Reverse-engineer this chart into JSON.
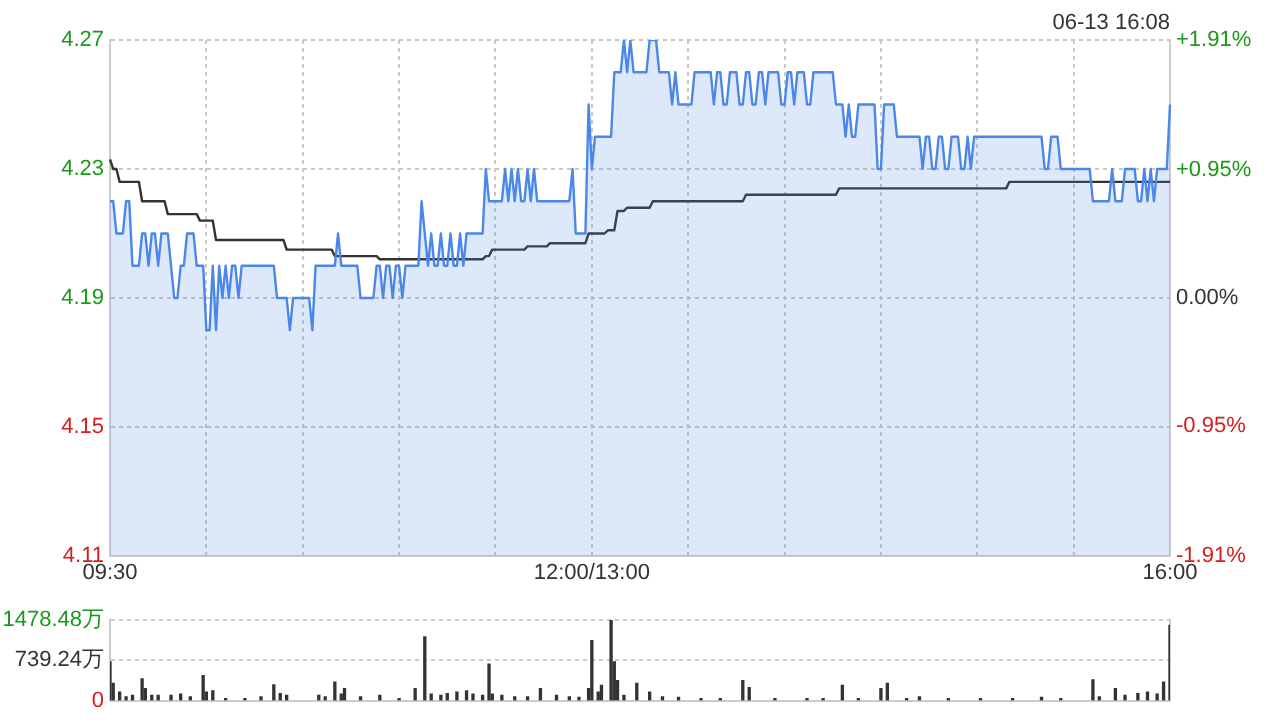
{
  "chart_data": [
    {
      "type": "line",
      "annotations": [
        "06-13 16:08"
      ],
      "categories": [
        "09:30",
        null,
        null,
        null,
        null,
        null,
        null,
        null,
        null,
        null,
        null,
        null,
        null,
        null,
        null,
        null,
        null,
        null,
        null,
        null,
        null,
        null,
        null,
        null,
        null,
        null,
        null,
        null,
        null,
        null,
        null,
        null,
        null,
        null,
        null,
        null,
        null,
        null,
        null,
        null,
        null,
        null,
        null,
        null,
        null,
        null,
        null,
        null,
        null,
        null,
        null,
        null,
        null,
        null,
        null,
        null,
        null,
        null,
        null,
        null,
        null,
        null,
        null,
        null,
        null,
        null,
        null,
        null,
        null,
        null,
        null,
        null,
        null,
        null,
        null,
        null,
        null,
        null,
        null,
        null,
        null,
        null,
        null,
        null,
        null,
        null,
        null,
        null,
        null,
        null,
        null,
        null,
        null,
        null,
        null,
        null,
        null,
        null,
        null,
        null,
        null,
        null,
        null,
        null,
        null,
        null,
        null,
        null,
        null,
        null,
        null,
        null,
        null,
        null,
        null,
        null,
        null,
        null,
        null,
        null,
        null,
        null,
        null,
        null,
        null,
        null,
        null,
        null,
        null,
        null,
        null,
        null,
        null,
        null,
        null,
        null,
        null,
        null,
        null,
        null,
        null,
        null,
        null,
        null,
        null,
        null,
        null,
        null,
        null,
        null,
        "12:00/13:00",
        null,
        null,
        null,
        null,
        null,
        null,
        null,
        null,
        null,
        null,
        null,
        null,
        null,
        null,
        null,
        null,
        null,
        null,
        null,
        null,
        null,
        null,
        null,
        null,
        null,
        null,
        null,
        null,
        null,
        null,
        null,
        null,
        null,
        null,
        null,
        null,
        null,
        null,
        null,
        null,
        null,
        null,
        null,
        null,
        null,
        null,
        null,
        null,
        null,
        null,
        null,
        null,
        null,
        null,
        null,
        null,
        null,
        null,
        null,
        null,
        null,
        null,
        null,
        null,
        null,
        null,
        null,
        null,
        null,
        null,
        null,
        null,
        null,
        null,
        null,
        null,
        null,
        null,
        null,
        null,
        null,
        null,
        null,
        null,
        null,
        null,
        null,
        null,
        null,
        null,
        null,
        null,
        null,
        null,
        null,
        null,
        null,
        null,
        null,
        null,
        null,
        null,
        null,
        null,
        null,
        null,
        null,
        null,
        null,
        null,
        null,
        null,
        null,
        null,
        null,
        null,
        null,
        null,
        null,
        null,
        null,
        null,
        null,
        null,
        null,
        null,
        null,
        null,
        null,
        null,
        null,
        null,
        null,
        null,
        null,
        null,
        null,
        null,
        null,
        null,
        null,
        null,
        null,
        null,
        null,
        null,
        null,
        null,
        null,
        null,
        null,
        null,
        null,
        null,
        null,
        null,
        null,
        null,
        null,
        null,
        null,
        null,
        null,
        null,
        null,
        null,
        null,
        null,
        null,
        null,
        null,
        null,
        null,
        null,
        null,
        null,
        null,
        null,
        null,
        "16:00"
      ],
      "ylim": [
        4.11,
        4.27
      ],
      "yticks": [
        4.11,
        4.15,
        4.19,
        4.23,
        4.27
      ],
      "y2lim": [
        -1.91,
        1.91
      ],
      "y2ticks": [
        {
          "value": -1.91,
          "label": "-1.91%"
        },
        {
          "value": -0.95,
          "label": "-0.95%"
        },
        {
          "value": 0,
          "label": "0.00%"
        },
        {
          "value": 0.95,
          "label": "+0.95%"
        },
        {
          "value": 1.91,
          "label": "+1.91%"
        }
      ],
      "grid": true,
      "marker": "none",
      "series": [
        {
          "type": "area",
          "color": "#4a87e8",
          "values": [
            4.22,
            4.22,
            4.21,
            4.21,
            4.21,
            4.22,
            4.22,
            4.2,
            4.2,
            4.2,
            4.21,
            4.21,
            4.2,
            4.21,
            4.21,
            4.2,
            4.21,
            4.21,
            4.21,
            4.2,
            4.19,
            4.19,
            4.2,
            4.2,
            4.21,
            4.21,
            4.21,
            4.2,
            4.2,
            4.2,
            4.18,
            4.18,
            4.2,
            4.18,
            4.2,
            4.19,
            4.2,
            4.19,
            4.2,
            4.2,
            4.19,
            4.2,
            4.2,
            4.2,
            4.2,
            4.2,
            4.2,
            4.2,
            4.2,
            4.2,
            4.2,
            4.2,
            4.19,
            4.19,
            4.19,
            4.19,
            4.18,
            4.19,
            4.19,
            4.19,
            4.19,
            4.19,
            4.19,
            4.18,
            4.2,
            4.2,
            4.2,
            4.2,
            4.2,
            4.2,
            4.2,
            4.21,
            4.2,
            4.2,
            4.2,
            4.2,
            4.2,
            4.2,
            4.19,
            4.19,
            4.19,
            4.19,
            4.19,
            4.2,
            4.2,
            4.19,
            4.2,
            4.2,
            4.19,
            4.2,
            4.2,
            4.19,
            4.2,
            4.2,
            4.2,
            4.2,
            4.2,
            4.22,
            4.21,
            4.2,
            4.21,
            4.2,
            4.2,
            4.21,
            4.2,
            4.2,
            4.21,
            4.2,
            4.2,
            4.21,
            4.2,
            4.21,
            4.21,
            4.21,
            4.21,
            4.21,
            4.21,
            4.23,
            4.22,
            4.22,
            4.22,
            4.22,
            4.22,
            4.23,
            4.22,
            4.23,
            4.22,
            4.23,
            4.22,
            4.22,
            4.23,
            4.22,
            4.23,
            4.22,
            4.22,
            4.22,
            4.22,
            4.22,
            4.22,
            4.22,
            4.22,
            4.22,
            4.22,
            4.22,
            4.23,
            4.21,
            4.21,
            4.21,
            4.21,
            4.25,
            4.23,
            4.24,
            4.24,
            4.24,
            4.24,
            4.24,
            4.24,
            4.26,
            4.26,
            4.26,
            4.27,
            4.26,
            4.27,
            4.26,
            4.26,
            4.26,
            4.26,
            4.26,
            4.27,
            4.27,
            4.27,
            4.26,
            4.26,
            4.26,
            4.26,
            4.25,
            4.26,
            4.25,
            4.25,
            4.25,
            4.25,
            4.25,
            4.26,
            4.26,
            4.26,
            4.26,
            4.26,
            4.26,
            4.25,
            4.26,
            4.26,
            4.25,
            4.25,
            4.26,
            4.26,
            4.26,
            4.25,
            4.25,
            4.26,
            4.26,
            4.25,
            4.25,
            4.26,
            4.26,
            4.25,
            4.26,
            4.26,
            4.26,
            4.26,
            4.25,
            4.25,
            4.26,
            4.26,
            4.25,
            4.26,
            4.26,
            4.26,
            4.25,
            4.25,
            4.26,
            4.26,
            4.26,
            4.26,
            4.26,
            4.26,
            4.26,
            4.25,
            4.25,
            4.25,
            4.24,
            4.25,
            4.24,
            4.24,
            4.25,
            4.25,
            4.25,
            4.25,
            4.25,
            4.25,
            4.23,
            4.23,
            4.25,
            4.25,
            4.25,
            4.25,
            4.24,
            4.24,
            4.24,
            4.24,
            4.24,
            4.24,
            4.24,
            4.24,
            4.23,
            4.24,
            4.24,
            4.23,
            4.23,
            4.24,
            4.24,
            4.23,
            4.23,
            4.24,
            4.24,
            4.24,
            4.23,
            4.23,
            4.24,
            4.23,
            4.24,
            4.24,
            4.24,
            4.24,
            4.24,
            4.24,
            4.24,
            4.24,
            4.24,
            4.24,
            4.24,
            4.24,
            4.24,
            4.24,
            4.24,
            4.24,
            4.24,
            4.24,
            4.24,
            4.24,
            4.24,
            4.24,
            4.23,
            4.23,
            4.24,
            4.24,
            4.24,
            4.23,
            4.23,
            4.23,
            4.23,
            4.23,
            4.23,
            4.23,
            4.23,
            4.23,
            4.23,
            4.22,
            4.22,
            4.22,
            4.22,
            4.22,
            4.22,
            4.23,
            4.22,
            4.22,
            4.22,
            4.23,
            4.23,
            4.23,
            4.23,
            4.22,
            4.22,
            4.23,
            4.22,
            4.23,
            4.22,
            4.23,
            4.23,
            4.23,
            4.23,
            4.25
          ]
        },
        {
          "type": "line",
          "color": "#333333",
          "values": [
            4.233,
            4.23,
            4.23,
            4.226,
            4.226,
            4.226,
            4.226,
            4.226,
            4.226,
            4.226,
            4.22,
            4.22,
            4.22,
            4.22,
            4.22,
            4.22,
            4.22,
            4.22,
            4.216,
            4.216,
            4.216,
            4.216,
            4.216,
            4.216,
            4.216,
            4.216,
            4.216,
            4.216,
            4.214,
            4.214,
            4.214,
            4.214,
            4.214,
            4.208,
            4.208,
            4.208,
            4.208,
            4.208,
            4.208,
            4.208,
            4.208,
            4.208,
            4.208,
            4.208,
            4.208,
            4.208,
            4.208,
            4.208,
            4.208,
            4.208,
            4.208,
            4.208,
            4.208,
            4.208,
            4.208,
            4.205,
            4.205,
            4.205,
            4.205,
            4.205,
            4.205,
            4.205,
            4.205,
            4.205,
            4.205,
            4.205,
            4.205,
            4.205,
            4.205,
            4.205,
            4.203,
            4.203,
            4.203,
            4.203,
            4.203,
            4.203,
            4.203,
            4.203,
            4.203,
            4.203,
            4.203,
            4.203,
            4.203,
            4.203,
            4.202,
            4.202,
            4.202,
            4.202,
            4.202,
            4.202,
            4.202,
            4.202,
            4.202,
            4.202,
            4.202,
            4.202,
            4.202,
            4.202,
            4.202,
            4.202,
            4.202,
            4.202,
            4.202,
            4.202,
            4.202,
            4.202,
            4.202,
            4.202,
            4.202,
            4.202,
            4.202,
            4.202,
            4.202,
            4.202,
            4.202,
            4.202,
            4.202,
            4.203,
            4.203,
            4.205,
            4.205,
            4.205,
            4.205,
            4.205,
            4.205,
            4.205,
            4.205,
            4.205,
            4.205,
            4.205,
            4.206,
            4.206,
            4.206,
            4.206,
            4.206,
            4.206,
            4.206,
            4.207,
            4.207,
            4.207,
            4.207,
            4.207,
            4.207,
            4.207,
            4.207,
            4.207,
            4.207,
            4.207,
            4.207,
            4.21,
            4.21,
            4.21,
            4.21,
            4.21,
            4.21,
            4.211,
            4.211,
            4.211,
            4.217,
            4.217,
            4.217,
            4.218,
            4.218,
            4.218,
            4.218,
            4.218,
            4.218,
            4.218,
            4.218,
            4.22,
            4.22,
            4.22,
            4.22,
            4.22,
            4.22,
            4.22,
            4.22,
            4.22,
            4.22,
            4.22,
            4.22,
            4.22,
            4.22,
            4.22,
            4.22,
            4.22,
            4.22,
            4.22,
            4.22,
            4.22,
            4.22,
            4.22,
            4.22,
            4.22,
            4.22,
            4.22,
            4.22,
            4.22,
            4.222,
            4.222,
            4.222,
            4.222,
            4.222,
            4.222,
            4.222,
            4.222,
            4.222,
            4.222,
            4.222,
            4.222,
            4.222,
            4.222,
            4.222,
            4.222,
            4.222,
            4.222,
            4.222,
            4.222,
            4.222,
            4.222,
            4.222,
            4.222,
            4.222,
            4.222,
            4.222,
            4.222,
            4.222,
            4.224,
            4.224,
            4.224,
            4.224,
            4.224,
            4.224,
            4.224,
            4.224,
            4.224,
            4.224,
            4.224,
            4.224,
            4.224,
            4.224,
            4.224,
            4.224,
            4.224,
            4.224,
            4.224,
            4.224,
            4.224,
            4.224,
            4.224,
            4.224,
            4.224,
            4.224,
            4.224,
            4.224,
            4.224,
            4.224,
            4.224,
            4.224,
            4.224,
            4.224,
            4.224,
            4.224,
            4.224,
            4.224,
            4.224,
            4.224,
            4.224,
            4.224,
            4.224,
            4.224,
            4.224,
            4.224,
            4.224,
            4.224,
            4.224,
            4.224,
            4.224,
            4.224,
            4.224,
            4.226,
            4.226,
            4.226,
            4.226,
            4.226,
            4.226,
            4.226,
            4.226,
            4.226,
            4.226,
            4.226,
            4.226,
            4.226,
            4.226,
            4.226,
            4.226,
            4.226,
            4.226,
            4.226,
            4.226,
            4.226,
            4.226,
            4.226,
            4.226,
            4.226,
            4.226,
            4.226,
            4.226,
            4.226,
            4.226,
            4.226,
            4.226,
            4.226,
            4.226,
            4.226,
            4.226,
            4.226,
            4.226,
            4.226,
            4.226,
            4.226,
            4.226,
            4.226,
            4.226,
            4.226,
            4.226,
            4.226,
            4.226,
            4.226,
            4.226,
            4.226
          ]
        }
      ]
    },
    {
      "type": "bar",
      "color": "#333333",
      "tick_labels": "y",
      "grid": "y",
      "categories": [
        null,
        null,
        null,
        null,
        null,
        null,
        null,
        null,
        null,
        null,
        null,
        null,
        null,
        null,
        null,
        null,
        null,
        null,
        null,
        null,
        null,
        null,
        null,
        null,
        null,
        null,
        null,
        null,
        null,
        null,
        null,
        null,
        null,
        null,
        null,
        null,
        null,
        null,
        null,
        null,
        null,
        null,
        null,
        null,
        null,
        null,
        null,
        null,
        null,
        null,
        null,
        null,
        null,
        null,
        null,
        null,
        null,
        null,
        null,
        null,
        null,
        null,
        null,
        null,
        null,
        null,
        null,
        null,
        null,
        null,
        null,
        null,
        null,
        null,
        null,
        null,
        null,
        null,
        null,
        null,
        null,
        null,
        null,
        null,
        null,
        null,
        null,
        null,
        null,
        null,
        null,
        null,
        null,
        null,
        null,
        null,
        null,
        null,
        null,
        null,
        null,
        null,
        null,
        null,
        null,
        null,
        null,
        null,
        null,
        null,
        null,
        null,
        null,
        null,
        null,
        null,
        null,
        null,
        null,
        null,
        null,
        null,
        null,
        null,
        null,
        null,
        null,
        null,
        null,
        null,
        null,
        null,
        null,
        null,
        null,
        null,
        null,
        null,
        null,
        null,
        null,
        null,
        null,
        null,
        null,
        null,
        null,
        null,
        null,
        null,
        null,
        null,
        null,
        null,
        null,
        null,
        null,
        null,
        null,
        null,
        null,
        null,
        null,
        null,
        null,
        null,
        null,
        null,
        null,
        null,
        null,
        null,
        null,
        null,
        null,
        null,
        null,
        null,
        null,
        null,
        null,
        null,
        null,
        null,
        null,
        null,
        null,
        null,
        null,
        null,
        null,
        null,
        null,
        null,
        null,
        null,
        null,
        null,
        null,
        null,
        null,
        null,
        null,
        null,
        null,
        null,
        null,
        null,
        null,
        null,
        null,
        null,
        null,
        null,
        null,
        null,
        null,
        null,
        null,
        null,
        null,
        null,
        null,
        null,
        null,
        null,
        null,
        null,
        null,
        null,
        null,
        null,
        null,
        null,
        null,
        null,
        null,
        null,
        null,
        null,
        null,
        null,
        null,
        null,
        null,
        null,
        null,
        null,
        null,
        null,
        null,
        null,
        null,
        null,
        null,
        null,
        null,
        null,
        null,
        null,
        null,
        null,
        null,
        null,
        null,
        null,
        null,
        null,
        null,
        null,
        null,
        null,
        null,
        null,
        null,
        null,
        null,
        null,
        null,
        null,
        null,
        null,
        null,
        null,
        null,
        null,
        null,
        null,
        null,
        null,
        null,
        null,
        null,
        null,
        null,
        null,
        null,
        null,
        null,
        null,
        null,
        null,
        null,
        null,
        null,
        null,
        null,
        null,
        null,
        null,
        null,
        null,
        null,
        null,
        null,
        null,
        null,
        null,
        null,
        null,
        null,
        null,
        null,
        null,
        null,
        null,
        null,
        null,
        null,
        null,
        null
      ],
      "ylim": [
        0,
        1478.48
      ],
      "yticks": [
        0,
        {
          "value": 739.24,
          "label": "739.24万"
        },
        {
          "value": 1478.48,
          "label": "1478.48万"
        }
      ],
      "values": [
        710,
        320,
        null,
        160,
        null,
        70,
        null,
        100,
        null,
        null,
        400,
        220,
        null,
        100,
        null,
        100,
        null,
        null,
        null,
        100,
        null,
        null,
        120,
        null,
        null,
        70,
        null,
        null,
        null,
        460,
        160,
        null,
        180,
        null,
        null,
        null,
        40,
        null,
        null,
        null,
        null,
        null,
        40,
        null,
        null,
        null,
        null,
        70,
        null,
        null,
        null,
        290,
        null,
        130,
        null,
        100,
        null,
        null,
        null,
        null,
        null,
        null,
        null,
        null,
        null,
        100,
        null,
        70,
        null,
        null,
        340,
        null,
        120,
        220,
        null,
        null,
        null,
        null,
        70,
        null,
        null,
        null,
        null,
        null,
        100,
        null,
        null,
        null,
        null,
        null,
        40,
        null,
        null,
        null,
        null,
        220,
        null,
        null,
        1170,
        null,
        120,
        null,
        null,
        100,
        null,
        130,
        null,
        null,
        160,
        null,
        null,
        180,
        null,
        120,
        null,
        null,
        100,
        null,
        670,
        120,
        null,
        null,
        100,
        null,
        null,
        null,
        70,
        null,
        null,
        null,
        70,
        null,
        null,
        null,
        220,
        null,
        null,
        null,
        null,
        100,
        null,
        null,
        null,
        70,
        null,
        null,
        60,
        null,
        null,
        220,
        1100,
        null,
        160,
        280,
        null,
        null,
        1470,
        710,
        370,
        null,
        100,
        null,
        null,
        null,
        320,
        null,
        null,
        null,
        160,
        null,
        null,
        null,
        70,
        null,
        null,
        null,
        null,
        60,
        null,
        null,
        null,
        null,
        null,
        null,
        40,
        null,
        null,
        null,
        null,
        null,
        40,
        null,
        null,
        null,
        null,
        null,
        null,
        370,
        null,
        240,
        null,
        null,
        null,
        null,
        null,
        null,
        null,
        40,
        null,
        null,
        null,
        null,
        null,
        null,
        null,
        null,
        null,
        40,
        null,
        null,
        null,
        null,
        40,
        null,
        null,
        null,
        null,
        null,
        280,
        null,
        null,
        null,
        null,
        40,
        null,
        null,
        null,
        null,
        null,
        null,
        220,
        null,
        320,
        null,
        null,
        null,
        null,
        null,
        40,
        null,
        null,
        null,
        70,
        null,
        null,
        null,
        null,
        null,
        null,
        null,
        null,
        40,
        null,
        null,
        null,
        null,
        null,
        null,
        null,
        null,
        null,
        40,
        null,
        null,
        null,
        null,
        null,
        null,
        null,
        null,
        null,
        40,
        null,
        null,
        null,
        null,
        null,
        null,
        null,
        null,
        60,
        null,
        null,
        null,
        null,
        null,
        40,
        null,
        null,
        null,
        null,
        null,
        null,
        null,
        null,
        null,
        380,
        null,
        70,
        null,
        null,
        null,
        null,
        220,
        null,
        null,
        100,
        null,
        null,
        null,
        130,
        null,
        null,
        160,
        null,
        null,
        120,
        null,
        340,
        null,
        1380
      ]
    }
  ]
}
